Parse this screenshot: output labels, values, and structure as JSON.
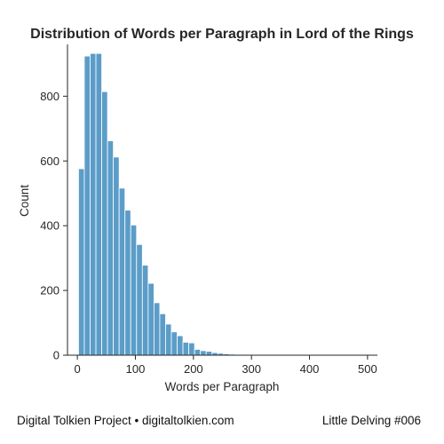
{
  "chart_data": {
    "type": "bar",
    "title": "Distribution of Words per Paragraph in Lord of the Rings",
    "xlabel": "Words per Paragraph",
    "ylabel": "Count",
    "xlim": [
      -17,
      517
    ],
    "ylim": [
      0,
      960
    ],
    "xticks": [
      0,
      100,
      200,
      300,
      400,
      500
    ],
    "yticks": [
      0,
      200,
      400,
      600,
      800
    ],
    "bin_width": 10,
    "bin_start": 2,
    "values": [
      576,
      924,
      932,
      932,
      814,
      662,
      612,
      516,
      448,
      402,
      342,
      278,
      222,
      162,
      128,
      96,
      72,
      60,
      40,
      38,
      18,
      14,
      12,
      8,
      6,
      4,
      3,
      2,
      1,
      1,
      1,
      1,
      0,
      0,
      0,
      0,
      0,
      0,
      0,
      0,
      0,
      0,
      0,
      0,
      0,
      0,
      0,
      0,
      0,
      1
    ],
    "bar_color": "#5b9dc8",
    "bar_edge_color": "#ffffff",
    "grid": false
  },
  "footer": {
    "left": "Digital Tolkien Project • digitaltolkien.com",
    "right": "Little Delving #006"
  }
}
